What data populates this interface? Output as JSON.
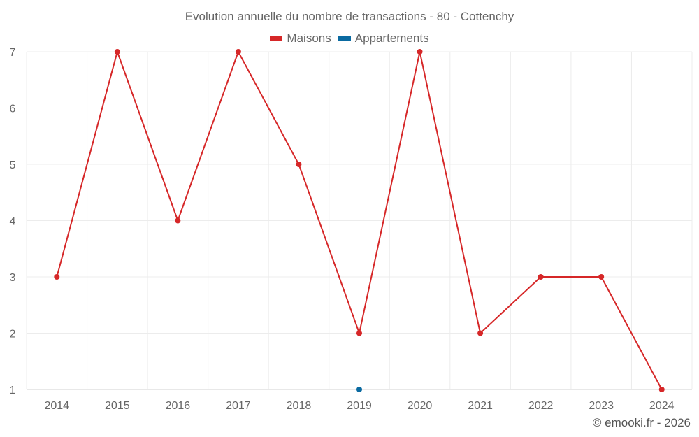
{
  "chart_data": {
    "type": "line",
    "title": "Evolution annuelle du nombre de transactions - 80 - Cottenchy",
    "categories": [
      "2014",
      "2015",
      "2016",
      "2017",
      "2018",
      "2019",
      "2020",
      "2021",
      "2022",
      "2023",
      "2024"
    ],
    "series": [
      {
        "name": "Maisons",
        "color": "#d62728",
        "values": [
          3,
          7,
          4,
          7,
          5,
          2,
          7,
          2,
          3,
          3,
          1
        ]
      },
      {
        "name": "Appartements",
        "color": "#0a6aa1",
        "values": [
          null,
          null,
          null,
          null,
          null,
          1,
          null,
          null,
          null,
          null,
          null
        ]
      }
    ],
    "ylim": [
      1,
      7
    ],
    "yticks": [
      1,
      2,
      3,
      4,
      5,
      6,
      7
    ],
    "grid": true,
    "legend_position": "top-center",
    "xlabel": "",
    "ylabel": ""
  },
  "credit": "© emooki.fr - 2026"
}
